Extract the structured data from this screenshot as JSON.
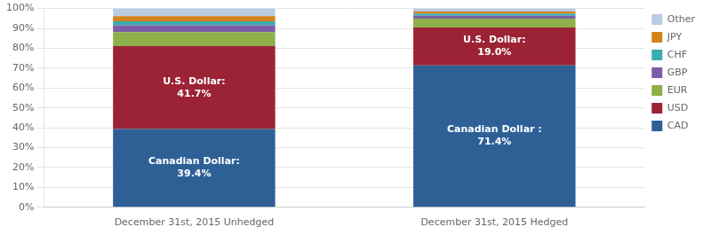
{
  "chart_data": {
    "type": "bar",
    "stacked": true,
    "categories": [
      "December 31st, 2015 Unhedged",
      "December 31st, 2015 Hedged"
    ],
    "series": [
      {
        "name": "CAD",
        "color": "#2E6096",
        "values": [
          0.394,
          0.714
        ],
        "value_labels": [
          "Canadian Dollar:\n39.4%",
          "Canadian Dollar :\n71.4%"
        ]
      },
      {
        "name": "USD",
        "color": "#9B2335",
        "values": [
          0.417,
          0.19
        ],
        "value_labels": [
          "U.S. Dollar:\n41.7%",
          "U.S. Dollar:\n19.0%"
        ]
      },
      {
        "name": "EUR",
        "color": "#8DB04B",
        "values": [
          0.07,
          0.045
        ]
      },
      {
        "name": "GBP",
        "color": "#7B5EA7",
        "values": [
          0.035,
          0.015
        ]
      },
      {
        "name": "CHF",
        "color": "#3AABAF",
        "values": [
          0.02,
          0.01
        ]
      },
      {
        "name": "JPY",
        "color": "#D4821A",
        "values": [
          0.025,
          0.011
        ]
      },
      {
        "name": "Other",
        "color": "#B8CCE4",
        "values": [
          0.039,
          0.015
        ]
      }
    ],
    "ylim": [
      0.0,
      1.0
    ],
    "yticks": [
      {
        "value": 0.0,
        "label": "0%"
      },
      {
        "value": 0.1,
        "label": "10%"
      },
      {
        "value": 0.2,
        "label": "20%"
      },
      {
        "value": 0.3,
        "label": "30%"
      },
      {
        "value": 0.4,
        "label": "40%"
      },
      {
        "value": 0.5,
        "label": "50%"
      },
      {
        "value": 0.6,
        "label": "60%"
      },
      {
        "value": 0.7,
        "label": "70%"
      },
      {
        "value": 0.8,
        "label": "80%"
      },
      {
        "value": 0.9,
        "label": "90%"
      },
      {
        "value": 1.0,
        "label": "100%"
      }
    ],
    "grid": true,
    "legend": "right"
  }
}
